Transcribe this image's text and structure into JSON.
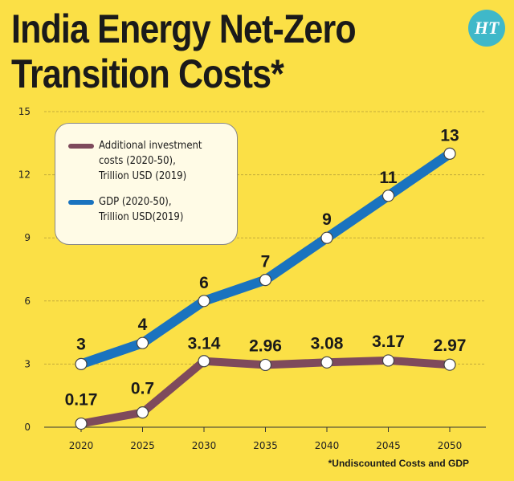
{
  "header": {
    "title_line1": "India Energy Net-Zero",
    "title_line2": "Transition Costs*",
    "logo_text": "HT"
  },
  "footnote": "*Undiscounted Costs and GDP",
  "colors": {
    "background": "#fbe046",
    "gdp_line": "#1a73bf",
    "investment_line": "#7e4a5c",
    "grid": "#c4ab3a"
  },
  "legend": [
    {
      "name": "Additional investment\ncosts (2020-50),\nTrillion USD (2019)",
      "color": "#7e4a5c"
    },
    {
      "name": "GDP (2020-50),\nTrillion USD(2019)",
      "color": "#1a73bf"
    }
  ],
  "chart_data": {
    "type": "line",
    "title": "India Energy Net-Zero Transition Costs*",
    "xlabel": "",
    "ylabel": "",
    "x": [
      "2020",
      "2025",
      "2030",
      "2035",
      "2040",
      "2045",
      "2050"
    ],
    "ylim": [
      0,
      15
    ],
    "yticks": [
      "0",
      "3",
      "6",
      "9",
      "12",
      "15"
    ],
    "grid": true,
    "legend_position": "top-left",
    "series": [
      {
        "name": "GDP (2020-50), Trillion USD(2019)",
        "values": [
          3,
          4,
          6,
          7,
          9,
          11,
          13
        ],
        "labels": [
          "3",
          "4",
          "6",
          "7",
          "9",
          "11",
          "13"
        ]
      },
      {
        "name": "Additional investment costs (2020-50), Trillion USD (2019)",
        "values": [
          0.17,
          0.7,
          3.14,
          2.96,
          3.08,
          3.17,
          2.97
        ],
        "labels": [
          "0.17",
          "0.7",
          "3.14",
          "2.96",
          "3.08",
          "3.17",
          "2.97"
        ]
      }
    ]
  }
}
